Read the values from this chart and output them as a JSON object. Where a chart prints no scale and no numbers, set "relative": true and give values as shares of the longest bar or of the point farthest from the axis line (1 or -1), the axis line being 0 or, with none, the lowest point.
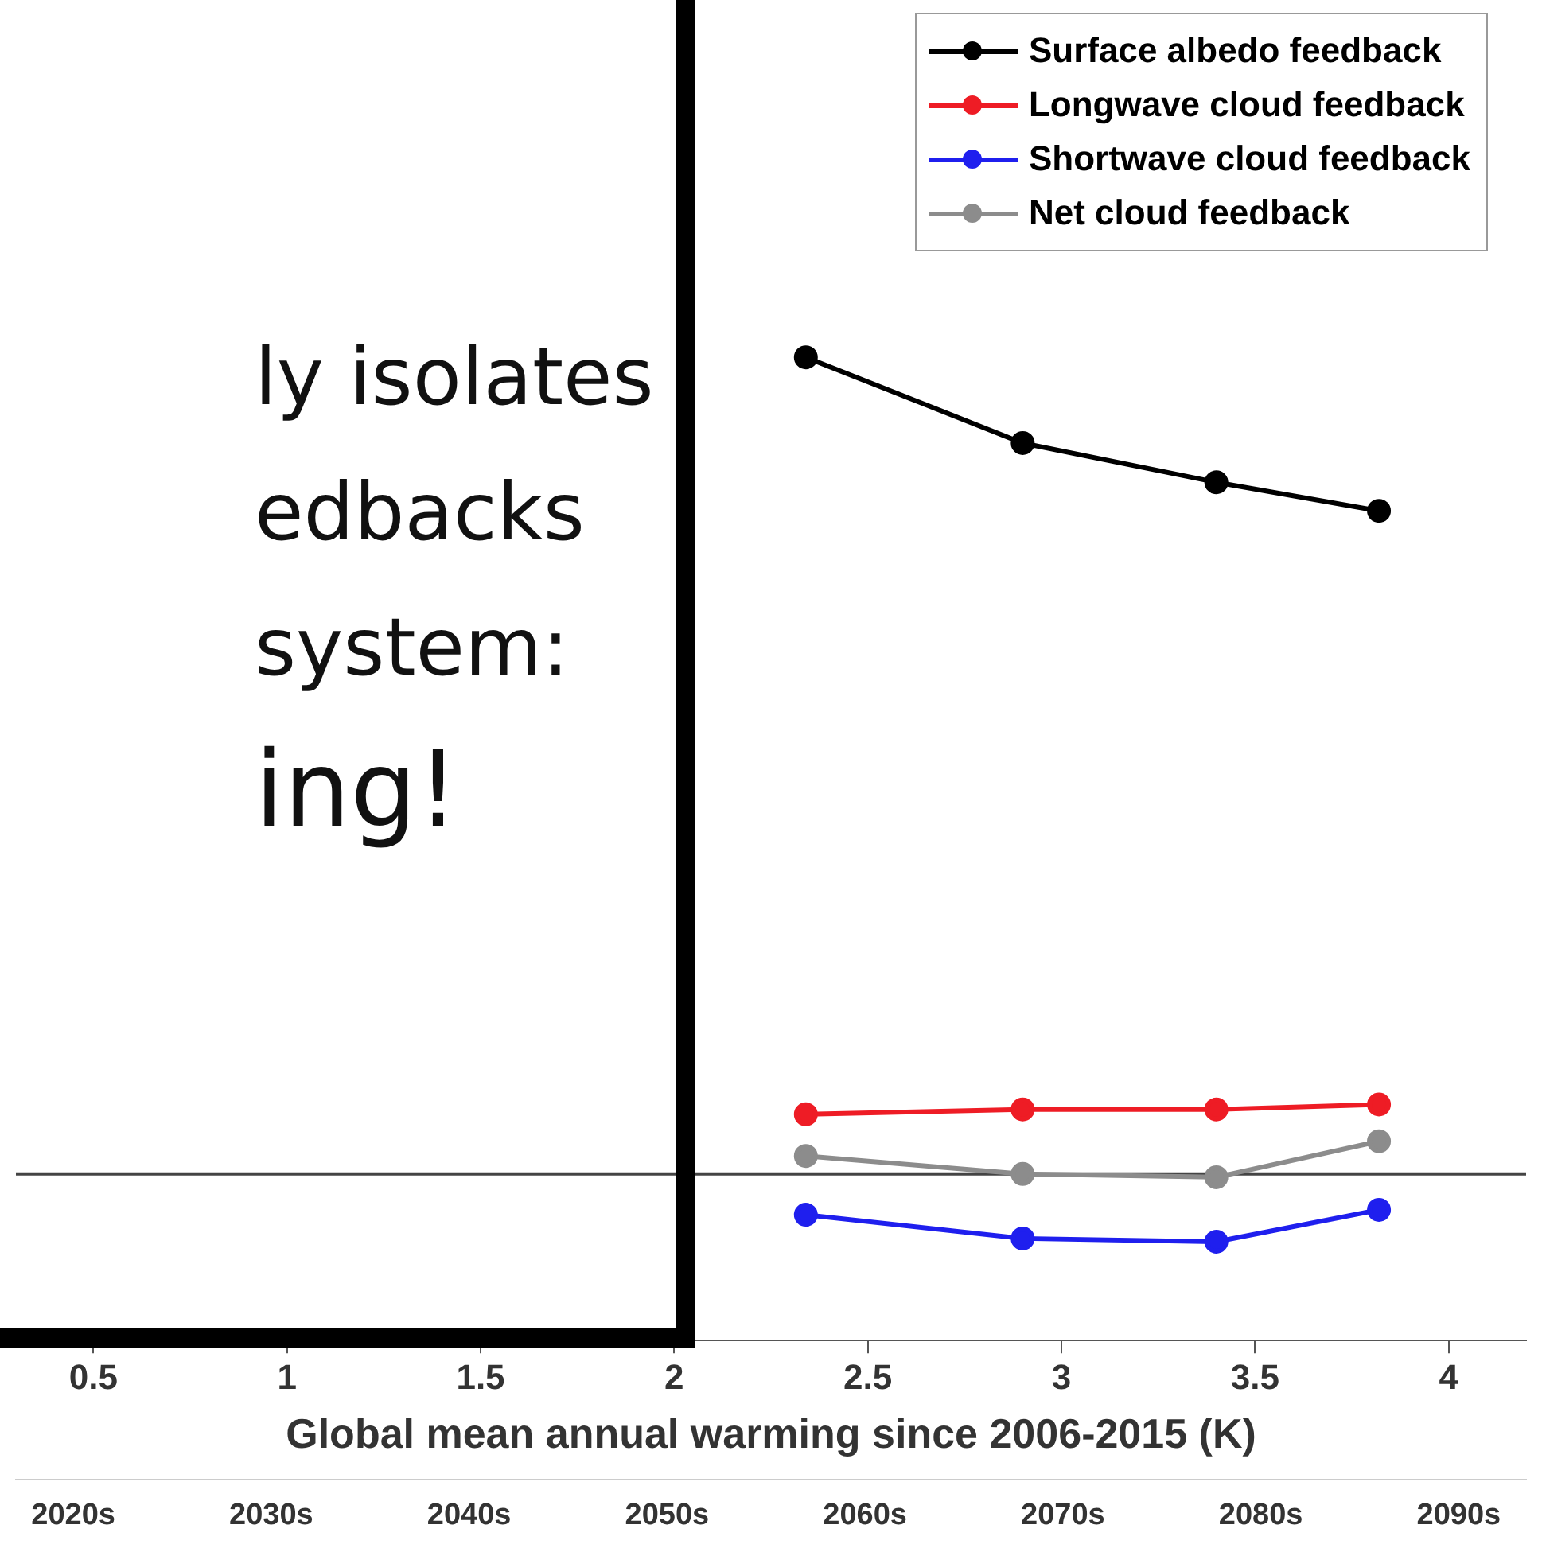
{
  "chart_data": {
    "type": "line",
    "relative": true,
    "xlabel": "Global mean annual warming since 2006-2015 (K)",
    "xlim": [
      0.3,
      4.2
    ],
    "xticks": [
      0.5,
      1,
      1.5,
      2,
      2.5,
      3,
      3.5,
      4
    ],
    "x2lim": [
      2017.1,
      2093.4
    ],
    "x2ticks": [
      {
        "value": 2020,
        "label": "2020s"
      },
      {
        "value": 2030,
        "label": "2030s"
      },
      {
        "value": 2040,
        "label": "2040s"
      },
      {
        "value": 2050,
        "label": "2050s"
      },
      {
        "value": 2060,
        "label": "2060s"
      },
      {
        "value": 2070,
        "label": "2070s"
      },
      {
        "value": 2080,
        "label": "2080s"
      },
      {
        "value": 2090,
        "label": "2090s"
      }
    ],
    "x": [
      2.34,
      2.9,
      3.4,
      3.82
    ],
    "series": [
      {
        "name": "Surface albedo feedback",
        "color": "#000000",
        "values": [
          1,
          0.895,
          0.847,
          0.812
        ]
      },
      {
        "name": "Longwave cloud feedback",
        "color": "#ee1c25",
        "values": [
          0.073,
          0.079,
          0.079,
          0.085
        ]
      },
      {
        "name": "Shortwave cloud feedback",
        "color": "#1f1fee",
        "values": [
          -0.05,
          -0.079,
          -0.083,
          -0.044
        ]
      },
      {
        "name": "Net cloud feedback",
        "color": "#8c8c8c",
        "values": [
          0.022,
          0,
          -0.004,
          0.04
        ]
      }
    ],
    "marker": "circle",
    "legend": "top right",
    "grid": false,
    "annotations": [
      "ly isolates",
      "edbacks",
      "system:",
      "ing!"
    ]
  }
}
